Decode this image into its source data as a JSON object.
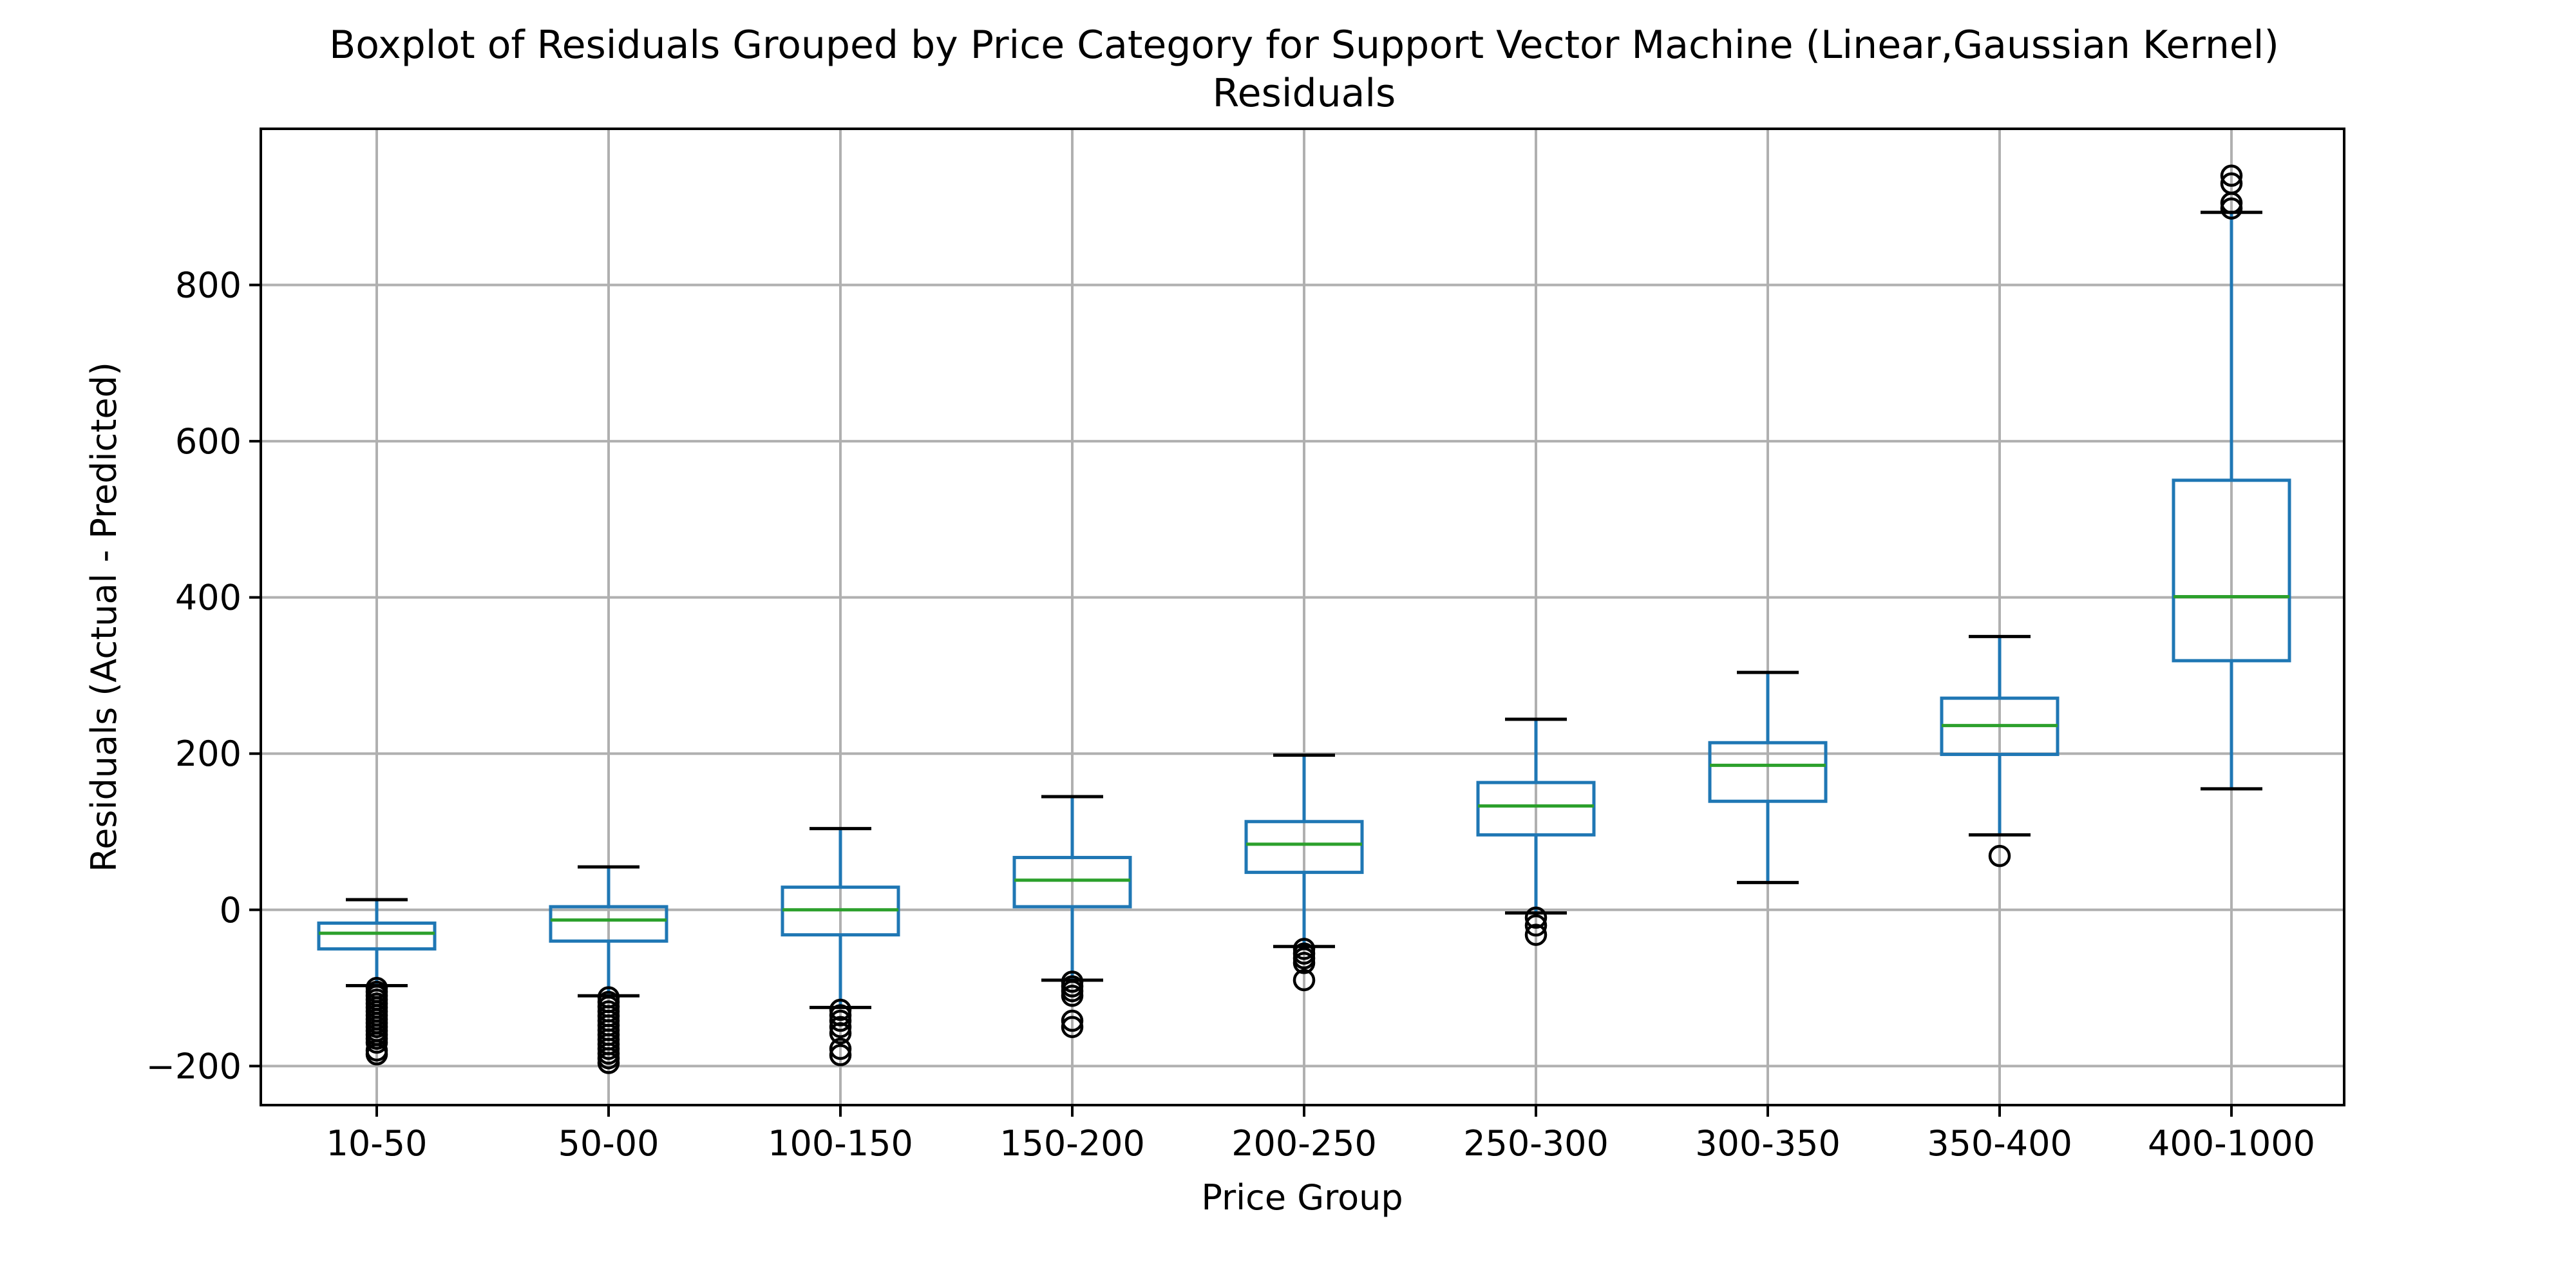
{
  "chart_data": {
    "type": "boxplot",
    "title": "Boxplot of Residuals Grouped by Price Category for Support Vector Machine (Linear,Gaussian Kernel)",
    "subtitle": "Residuals",
    "xlabel": "Price Group",
    "ylabel": "Residuals (Actual - Predicted)",
    "ylim": [
      -250,
      1000
    ],
    "yticks": [
      -200,
      0,
      200,
      400,
      600,
      800
    ],
    "ytick_labels": [
      "−200",
      "0",
      "200",
      "400",
      "600",
      "800"
    ],
    "grid": true,
    "colors": {
      "box": "#1f77b4",
      "median": "#2ca02c",
      "flier": "#000000",
      "grid": "#b0b0b0"
    },
    "categories": [
      "10-50",
      "50-00",
      "100-150",
      "150-200",
      "200-250",
      "250-300",
      "300-350",
      "350-400",
      "400-1000"
    ],
    "boxes": [
      {
        "whislo": -97,
        "q1": -50,
        "med": -30,
        "q3": -17,
        "whishi": 13,
        "fliers": [
          -100,
          -105,
          -110,
          -115,
          -120,
          -125,
          -130,
          -135,
          -140,
          -145,
          -150,
          -155,
          -160,
          -165,
          -170,
          -180,
          -185
        ]
      },
      {
        "whislo": -110,
        "q1": -40,
        "med": -13,
        "q3": 4,
        "whishi": 55,
        "fliers": [
          -112,
          -118,
          -124,
          -130,
          -136,
          -142,
          -148,
          -154,
          -160,
          -166,
          -172,
          -178,
          -184,
          -190,
          -196
        ]
      },
      {
        "whislo": -125,
        "q1": -32,
        "med": 0,
        "q3": 29,
        "whishi": 104,
        "fliers": [
          -128,
          -135,
          -142,
          -150,
          -158,
          -178,
          -186
        ]
      },
      {
        "whislo": -90,
        "q1": 4,
        "med": 38,
        "q3": 67,
        "whishi": 145,
        "fliers": [
          -92,
          -98,
          -104,
          -110,
          -142,
          -150
        ]
      },
      {
        "whislo": -47,
        "q1": 48,
        "med": 84,
        "q3": 113,
        "whishi": 198,
        "fliers": [
          -50,
          -56,
          -62,
          -68,
          -90
        ]
      },
      {
        "whislo": -4,
        "q1": 96,
        "med": 133,
        "q3": 163,
        "whishi": 244,
        "fliers": [
          -10,
          -20,
          -32
        ]
      },
      {
        "whislo": 35,
        "q1": 139,
        "med": 185,
        "q3": 214,
        "whishi": 304,
        "fliers": []
      },
      {
        "whislo": 96,
        "q1": 199,
        "med": 236,
        "q3": 271,
        "whishi": 350,
        "fliers": [
          69
        ]
      },
      {
        "whislo": 155,
        "q1": 319,
        "med": 401,
        "q3": 550,
        "whishi": 893,
        "fliers": [
          898,
          905,
          930,
          940
        ]
      }
    ]
  }
}
